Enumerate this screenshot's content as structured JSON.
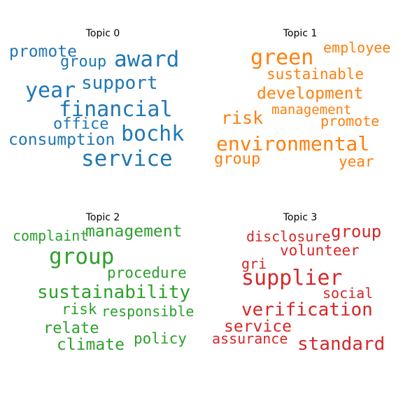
{
  "chart_data": [
    {
      "type": "wordcloud",
      "title": "Topic 0",
      "color": "#1f77b4",
      "words": [
        {
          "text": "promote"
        },
        {
          "text": "group"
        },
        {
          "text": "award"
        },
        {
          "text": "year"
        },
        {
          "text": "support"
        },
        {
          "text": "financial"
        },
        {
          "text": "office"
        },
        {
          "text": "bochk"
        },
        {
          "text": "consumption"
        },
        {
          "text": "service"
        }
      ]
    },
    {
      "type": "wordcloud",
      "title": "Topic 1",
      "color": "#ff7f0e",
      "words": [
        {
          "text": "green"
        },
        {
          "text": "employee"
        },
        {
          "text": "sustainable"
        },
        {
          "text": "development"
        },
        {
          "text": "risk"
        },
        {
          "text": "management"
        },
        {
          "text": "promote"
        },
        {
          "text": "environmental"
        },
        {
          "text": "group"
        },
        {
          "text": "year"
        }
      ]
    },
    {
      "type": "wordcloud",
      "title": "Topic 2",
      "color": "#2ca02c",
      "words": [
        {
          "text": "complaint"
        },
        {
          "text": "management"
        },
        {
          "text": "group"
        },
        {
          "text": "procedure"
        },
        {
          "text": "sustainability"
        },
        {
          "text": "risk"
        },
        {
          "text": "responsible"
        },
        {
          "text": "relate"
        },
        {
          "text": "policy"
        },
        {
          "text": "climate"
        }
      ]
    },
    {
      "type": "wordcloud",
      "title": "Topic 3",
      "color": "#d62728",
      "words": [
        {
          "text": "disclosure"
        },
        {
          "text": "group"
        },
        {
          "text": "volunteer"
        },
        {
          "text": "gri"
        },
        {
          "text": "supplier"
        },
        {
          "text": "social"
        },
        {
          "text": "verification"
        },
        {
          "text": "service"
        },
        {
          "text": "assurance"
        },
        {
          "text": "standard"
        }
      ]
    }
  ]
}
